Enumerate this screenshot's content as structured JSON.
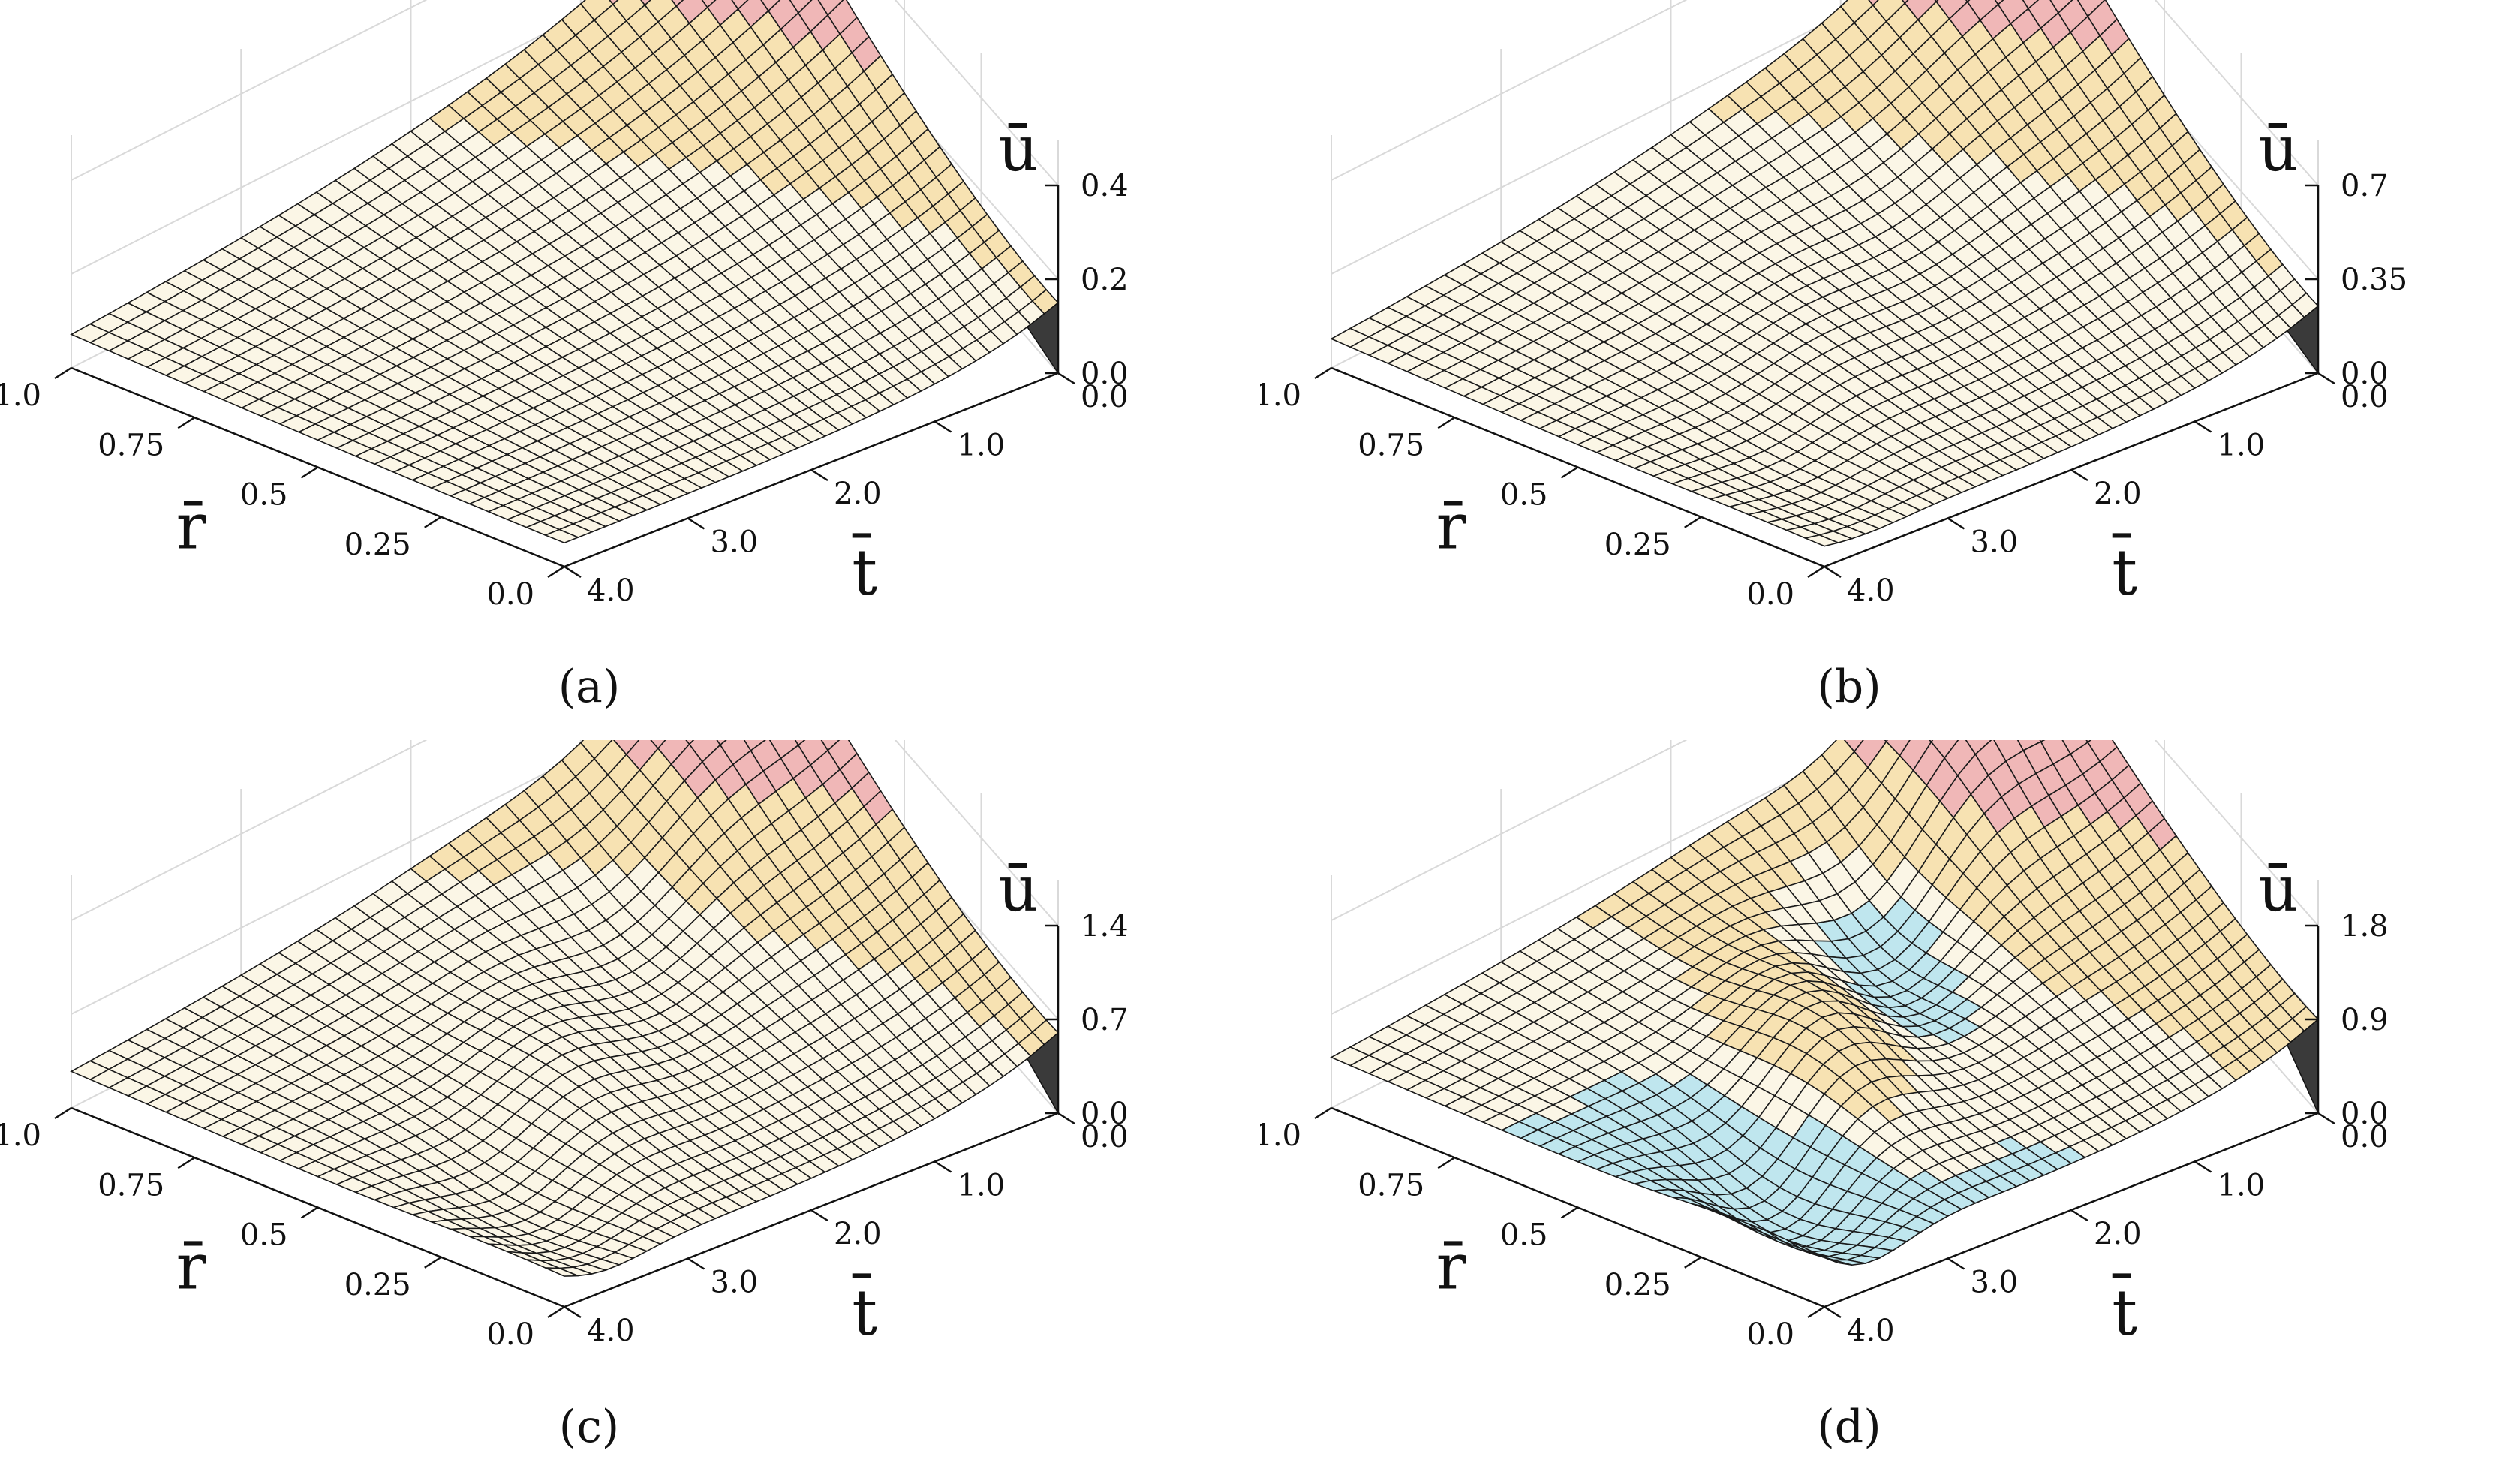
{
  "chart_data": [
    {
      "type": "surface",
      "panel": "(a)",
      "xlabel": "t̄",
      "ylabel": "r̄",
      "zlabel": "ū",
      "x_ticks": [
        "0.0",
        "1.0",
        "2.0",
        "3.0",
        "4.0"
      ],
      "y_ticks": [
        "1.0",
        "0.75",
        "0.5",
        "0.25",
        "0.0"
      ],
      "z_ticks": [
        "0.0",
        "0.2",
        "0.4"
      ],
      "xlim": [
        0,
        4
      ],
      "ylim": [
        0,
        1
      ],
      "zlim": [
        0,
        0.4
      ],
      "grid": true,
      "surface": {
        "peak_value": 0.4,
        "peak_at": {
          "t": 0,
          "r": 1.0
        },
        "end_value_r0": 0.15,
        "far_value": 0.05,
        "oscillation": 0
      }
    },
    {
      "type": "surface",
      "panel": "(b)",
      "xlabel": "t̄",
      "ylabel": "r̄",
      "zlabel": "ū",
      "x_ticks": [
        "0.0",
        "1.0",
        "2.0",
        "3.0",
        "4.0"
      ],
      "y_ticks": [
        "1.0",
        "0.75",
        "0.5",
        "0.25",
        "0.0"
      ],
      "z_ticks": [
        "0.0",
        "0.35",
        "0.7"
      ],
      "xlim": [
        0,
        4
      ],
      "ylim": [
        0,
        1
      ],
      "zlim": [
        0,
        0.7
      ],
      "grid": true,
      "surface": {
        "peak_value": 0.7,
        "peak_at": {
          "t": 0,
          "r": 1.0
        },
        "end_value_r0": 0.25,
        "far_value": 0.07,
        "oscillation": 0.05
      }
    },
    {
      "type": "surface",
      "panel": "(c)",
      "xlabel": "t̄",
      "ylabel": "r̄",
      "zlabel": "ū",
      "x_ticks": [
        "0.0",
        "1.0",
        "2.0",
        "3.0",
        "4.0"
      ],
      "y_ticks": [
        "1.0",
        "0.75",
        "0.5",
        "0.25",
        "0.0"
      ],
      "z_ticks": [
        "0.0",
        "0.7",
        "1.4"
      ],
      "xlim": [
        0,
        4
      ],
      "ylim": [
        0,
        1
      ],
      "zlim": [
        0,
        1.4
      ],
      "grid": true,
      "surface": {
        "peak_value": 1.4,
        "peak_at": {
          "t": 0,
          "r": 1.0
        },
        "end_value_r0": 0.6,
        "far_value": 0.2,
        "oscillation": 0.25
      }
    },
    {
      "type": "surface",
      "panel": "(d)",
      "xlabel": "t̄",
      "ylabel": "r̄",
      "zlabel": "ū",
      "x_ticks": [
        "0.0",
        "1.0",
        "2.0",
        "3.0",
        "4.0"
      ],
      "y_ticks": [
        "1.0",
        "0.75",
        "0.5",
        "0.25",
        "0.0"
      ],
      "z_ticks": [
        "0.0",
        "0.9",
        "1.8"
      ],
      "xlim": [
        0,
        4
      ],
      "ylim": [
        0,
        1
      ],
      "zlim": [
        0,
        1.8
      ],
      "grid": true,
      "surface": {
        "peak_value": 1.8,
        "peak_at": {
          "t": 0,
          "r": 1.0
        },
        "end_value_r0": 0.9,
        "far_value": 0.4,
        "oscillation": 0.7
      }
    }
  ]
}
